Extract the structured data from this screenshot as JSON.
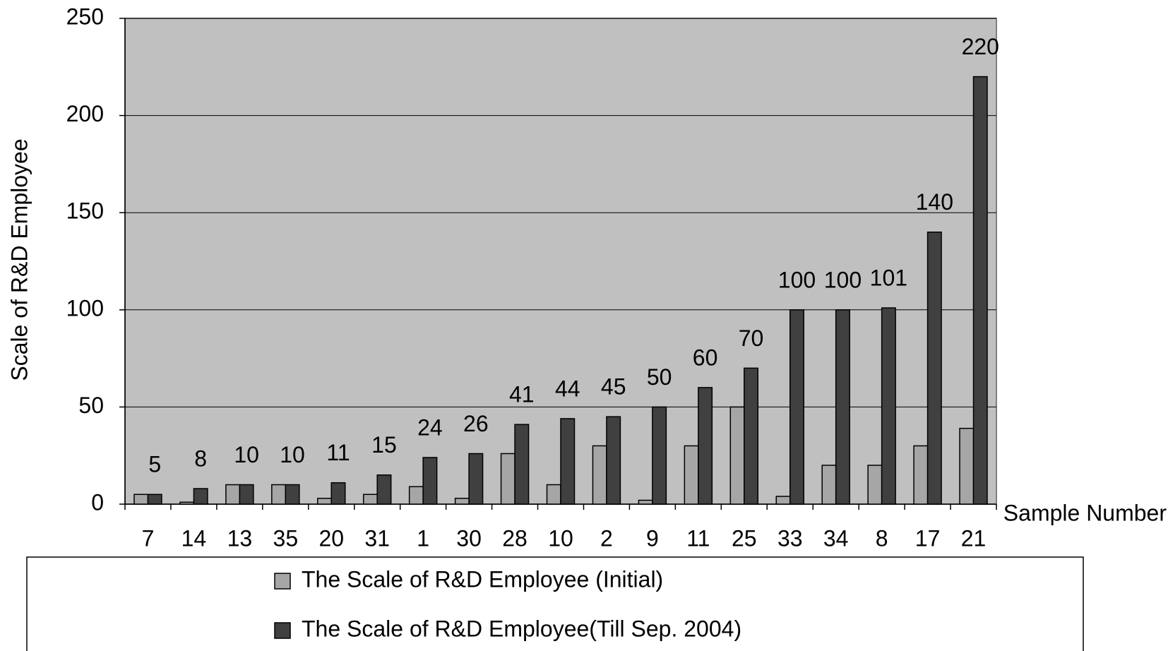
{
  "chart_data": {
    "type": "bar",
    "y_label": "Scale of R&D Employee",
    "x_label": "Sample Number",
    "categories": [
      "7",
      "14",
      "13",
      "35",
      "20",
      "31",
      "1",
      "30",
      "28",
      "10",
      "2",
      "9",
      "11",
      "25",
      "33",
      "34",
      "8",
      "17",
      "21"
    ],
    "series": [
      {
        "name": "The Scale of R&D Employee (Initial)",
        "color": "#a6a6a6",
        "values": [
          5,
          1,
          10,
          10,
          3,
          5,
          9,
          3,
          26,
          10,
          30,
          2,
          30,
          50,
          4,
          20,
          20,
          30,
          39
        ]
      },
      {
        "name": "The Scale of R&D Employee(Till Sep. 2004)",
        "color": "#404040",
        "values": [
          5,
          8,
          10,
          10,
          11,
          15,
          24,
          26,
          41,
          44,
          45,
          50,
          60,
          70,
          100,
          100,
          101,
          140,
          220
        ]
      }
    ],
    "data_labels_series": 1,
    "ylim": [
      0,
      250
    ],
    "yticks": [
      0,
      50,
      100,
      150,
      200,
      250
    ],
    "grid": true,
    "plot_background": "#c0c0c0",
    "legend_position": "bottom"
  }
}
